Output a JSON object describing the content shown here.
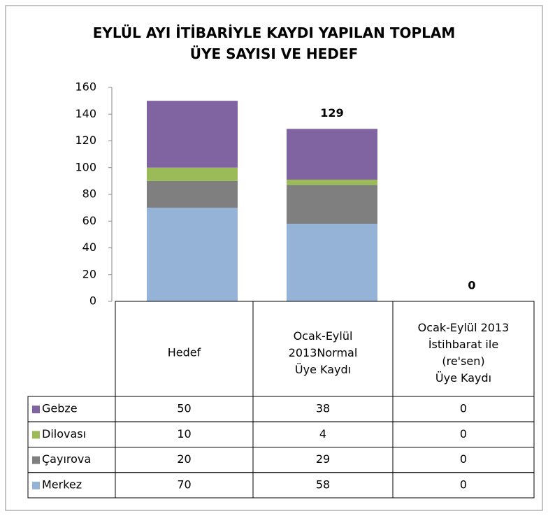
{
  "chart_data": {
    "type": "stacked_bar",
    "title": "EYLÜL  AYI İTİBARİYLE KAYDI YAPILAN TOPLAM\nÜYE SAYISI VE HEDEF",
    "categories": [
      "Hedef",
      "Ocak-Eylül\n2013Normal\nÜye Kaydı",
      "Ocak-Eylül 2013\nİstihbarat ile\n(re'sen)\nÜye Kaydı"
    ],
    "series": [
      {
        "name": "Merkez",
        "color": "#95b3d7",
        "values": [
          70,
          58,
          0
        ]
      },
      {
        "name": "Çayırova",
        "color": "#7f7f7f",
        "values": [
          20,
          29,
          0
        ]
      },
      {
        "name": "Dilovası",
        "color": "#9bbb59",
        "values": [
          10,
          4,
          0
        ]
      },
      {
        "name": "Gebze",
        "color": "#8064a2",
        "values": [
          50,
          38,
          0
        ]
      }
    ],
    "totals": [
      null,
      129,
      0
    ],
    "ylim": [
      0,
      160
    ],
    "yticks": [
      0,
      20,
      40,
      60,
      80,
      100,
      120,
      140,
      160
    ],
    "data_table": true
  }
}
